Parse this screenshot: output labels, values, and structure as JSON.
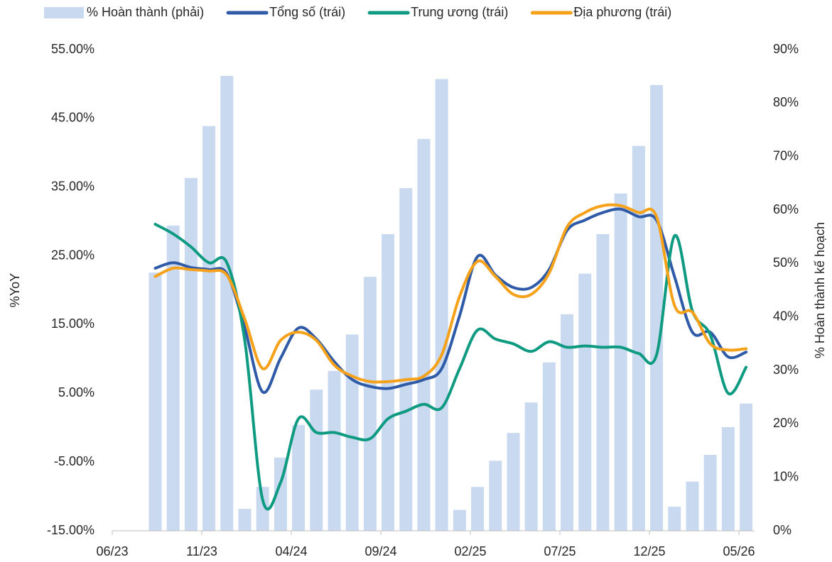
{
  "chart_data": {
    "type": "combo",
    "y_label": "%YoY",
    "y2_label": "% Hoàn thành kế hoạch",
    "categories": [
      "06/23",
      null,
      null,
      null,
      null,
      "11/23",
      null,
      null,
      null,
      null,
      "04/24",
      null,
      null,
      null,
      null,
      "09/24",
      null,
      null,
      null,
      null,
      "02/25",
      null,
      null,
      null,
      null,
      "07/25",
      null,
      null,
      null,
      null,
      "12/25",
      null,
      null,
      null,
      null,
      "05/26"
    ],
    "ylim": [
      -15,
      55
    ],
    "yticks": [
      {
        "value": -15,
        "label": "-15.00%"
      },
      {
        "value": -5,
        "label": "-5.00%"
      },
      {
        "value": 5,
        "label": "5.00%"
      },
      {
        "value": 15,
        "label": "15.00%"
      },
      {
        "value": 25,
        "label": "25.00%"
      },
      {
        "value": 35,
        "label": "35.00%"
      },
      {
        "value": 45,
        "label": "45.00%"
      },
      {
        "value": 55,
        "label": "55.00%"
      }
    ],
    "y2lim": [
      0,
      90
    ],
    "y2ticks": [
      {
        "value": 0,
        "label": "0%"
      },
      {
        "value": 10,
        "label": "10%"
      },
      {
        "value": 20,
        "label": "20%"
      },
      {
        "value": 30,
        "label": "30%"
      },
      {
        "value": 40,
        "label": "40%"
      },
      {
        "value": 50,
        "label": "50%"
      },
      {
        "value": 60,
        "label": "60%"
      },
      {
        "value": 70,
        "label": "70%"
      },
      {
        "value": 80,
        "label": "80%"
      },
      {
        "value": 90,
        "label": "90%"
      }
    ],
    "grid": false,
    "legend": "top",
    "series": [
      {
        "name": "% Hoàn thành (phải)",
        "type": "bar",
        "axis": "y2",
        "color": "#c9d9f0",
        "values": [
          null,
          null,
          48.3,
          57.1,
          66,
          75.7,
          85.1,
          4.1,
          8.2,
          13.7,
          19.8,
          26.4,
          29.9,
          36.7,
          47.5,
          55.5,
          64.1,
          73.3,
          84.5,
          3.9,
          8.2,
          13.1,
          18.3,
          24,
          31.5,
          40.5,
          48.1,
          55.5,
          63.1,
          72,
          83.4,
          4.5,
          9.2,
          14.2,
          19.4,
          23.8
        ]
      },
      {
        "name": "Tổng số (trái)",
        "type": "line",
        "color": "#2e5aa8",
        "values": [
          null,
          null,
          23.2,
          24.0,
          23.3,
          23.0,
          22.4,
          14.5,
          5.2,
          10.1,
          14.5,
          12.9,
          9.6,
          7.0,
          6.0,
          5.7,
          6.3,
          7.0,
          8.6,
          16.3,
          24.9,
          22.2,
          20.4,
          20.4,
          23.0,
          28.7,
          30.2,
          31.3,
          31.8,
          30.7,
          30.2,
          22.0,
          13.9,
          13.9,
          10.3,
          11.0
        ]
      },
      {
        "name": "Trung ương (trái)",
        "type": "line",
        "color": "#0f9a82",
        "values": [
          null,
          null,
          29.6,
          28.2,
          26.3,
          24.0,
          24.0,
          12.7,
          -10.5,
          -8.0,
          1.3,
          -0.7,
          -0.7,
          -1.4,
          -1.6,
          1.3,
          2.4,
          3.4,
          2.9,
          8.6,
          14.2,
          12.9,
          12.2,
          11.1,
          12.5,
          11.7,
          11.9,
          11.7,
          11.7,
          10.8,
          10.6,
          27.9,
          17.0,
          13.5,
          5.0,
          8.8
        ]
      },
      {
        "name": "Địa phương (trái)",
        "type": "line",
        "color": "#f5a11a",
        "values": [
          null,
          null,
          22.0,
          23.2,
          23.0,
          22.8,
          22.2,
          15.8,
          8.6,
          12.7,
          13.9,
          12.7,
          9.1,
          7.5,
          6.7,
          6.7,
          7.0,
          7.5,
          10.6,
          19.1,
          24.2,
          22.0,
          19.4,
          19.4,
          22.5,
          29.2,
          31.3,
          32.3,
          32.3,
          31.3,
          30.7,
          17.8,
          16.8,
          12.2,
          11.3,
          11.5
        ]
      }
    ]
  }
}
